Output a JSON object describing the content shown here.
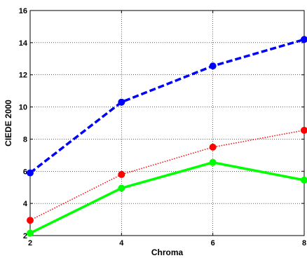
{
  "chart_data": {
    "type": "line",
    "xlabel": "Chroma",
    "ylabel": "CIEDE 2000",
    "xlim": [
      2,
      8
    ],
    "ylim": [
      2,
      16
    ],
    "xticks": [
      2,
      4,
      6,
      8
    ],
    "yticks": [
      2,
      4,
      6,
      8,
      10,
      12,
      14,
      16
    ],
    "xtick_labels": [
      "2",
      "4",
      "6",
      "8"
    ],
    "ytick_labels": [
      "2",
      "4",
      "6",
      "8",
      "10",
      "12",
      "14",
      "16"
    ],
    "grid": true,
    "x": [
      2,
      4,
      6,
      8
    ],
    "series": [
      {
        "values": [
          5.9,
          10.3,
          12.55,
          14.2
        ],
        "color": "#0000ff",
        "style": "dashed",
        "marker": "circle"
      },
      {
        "values": [
          2.95,
          5.8,
          7.5,
          8.55
        ],
        "color": "#ff0000",
        "style": "dotted",
        "marker": "circle"
      },
      {
        "values": [
          2.15,
          4.95,
          6.55,
          5.45
        ],
        "color": "#00ff00",
        "style": "solid",
        "marker": "circle"
      }
    ]
  }
}
